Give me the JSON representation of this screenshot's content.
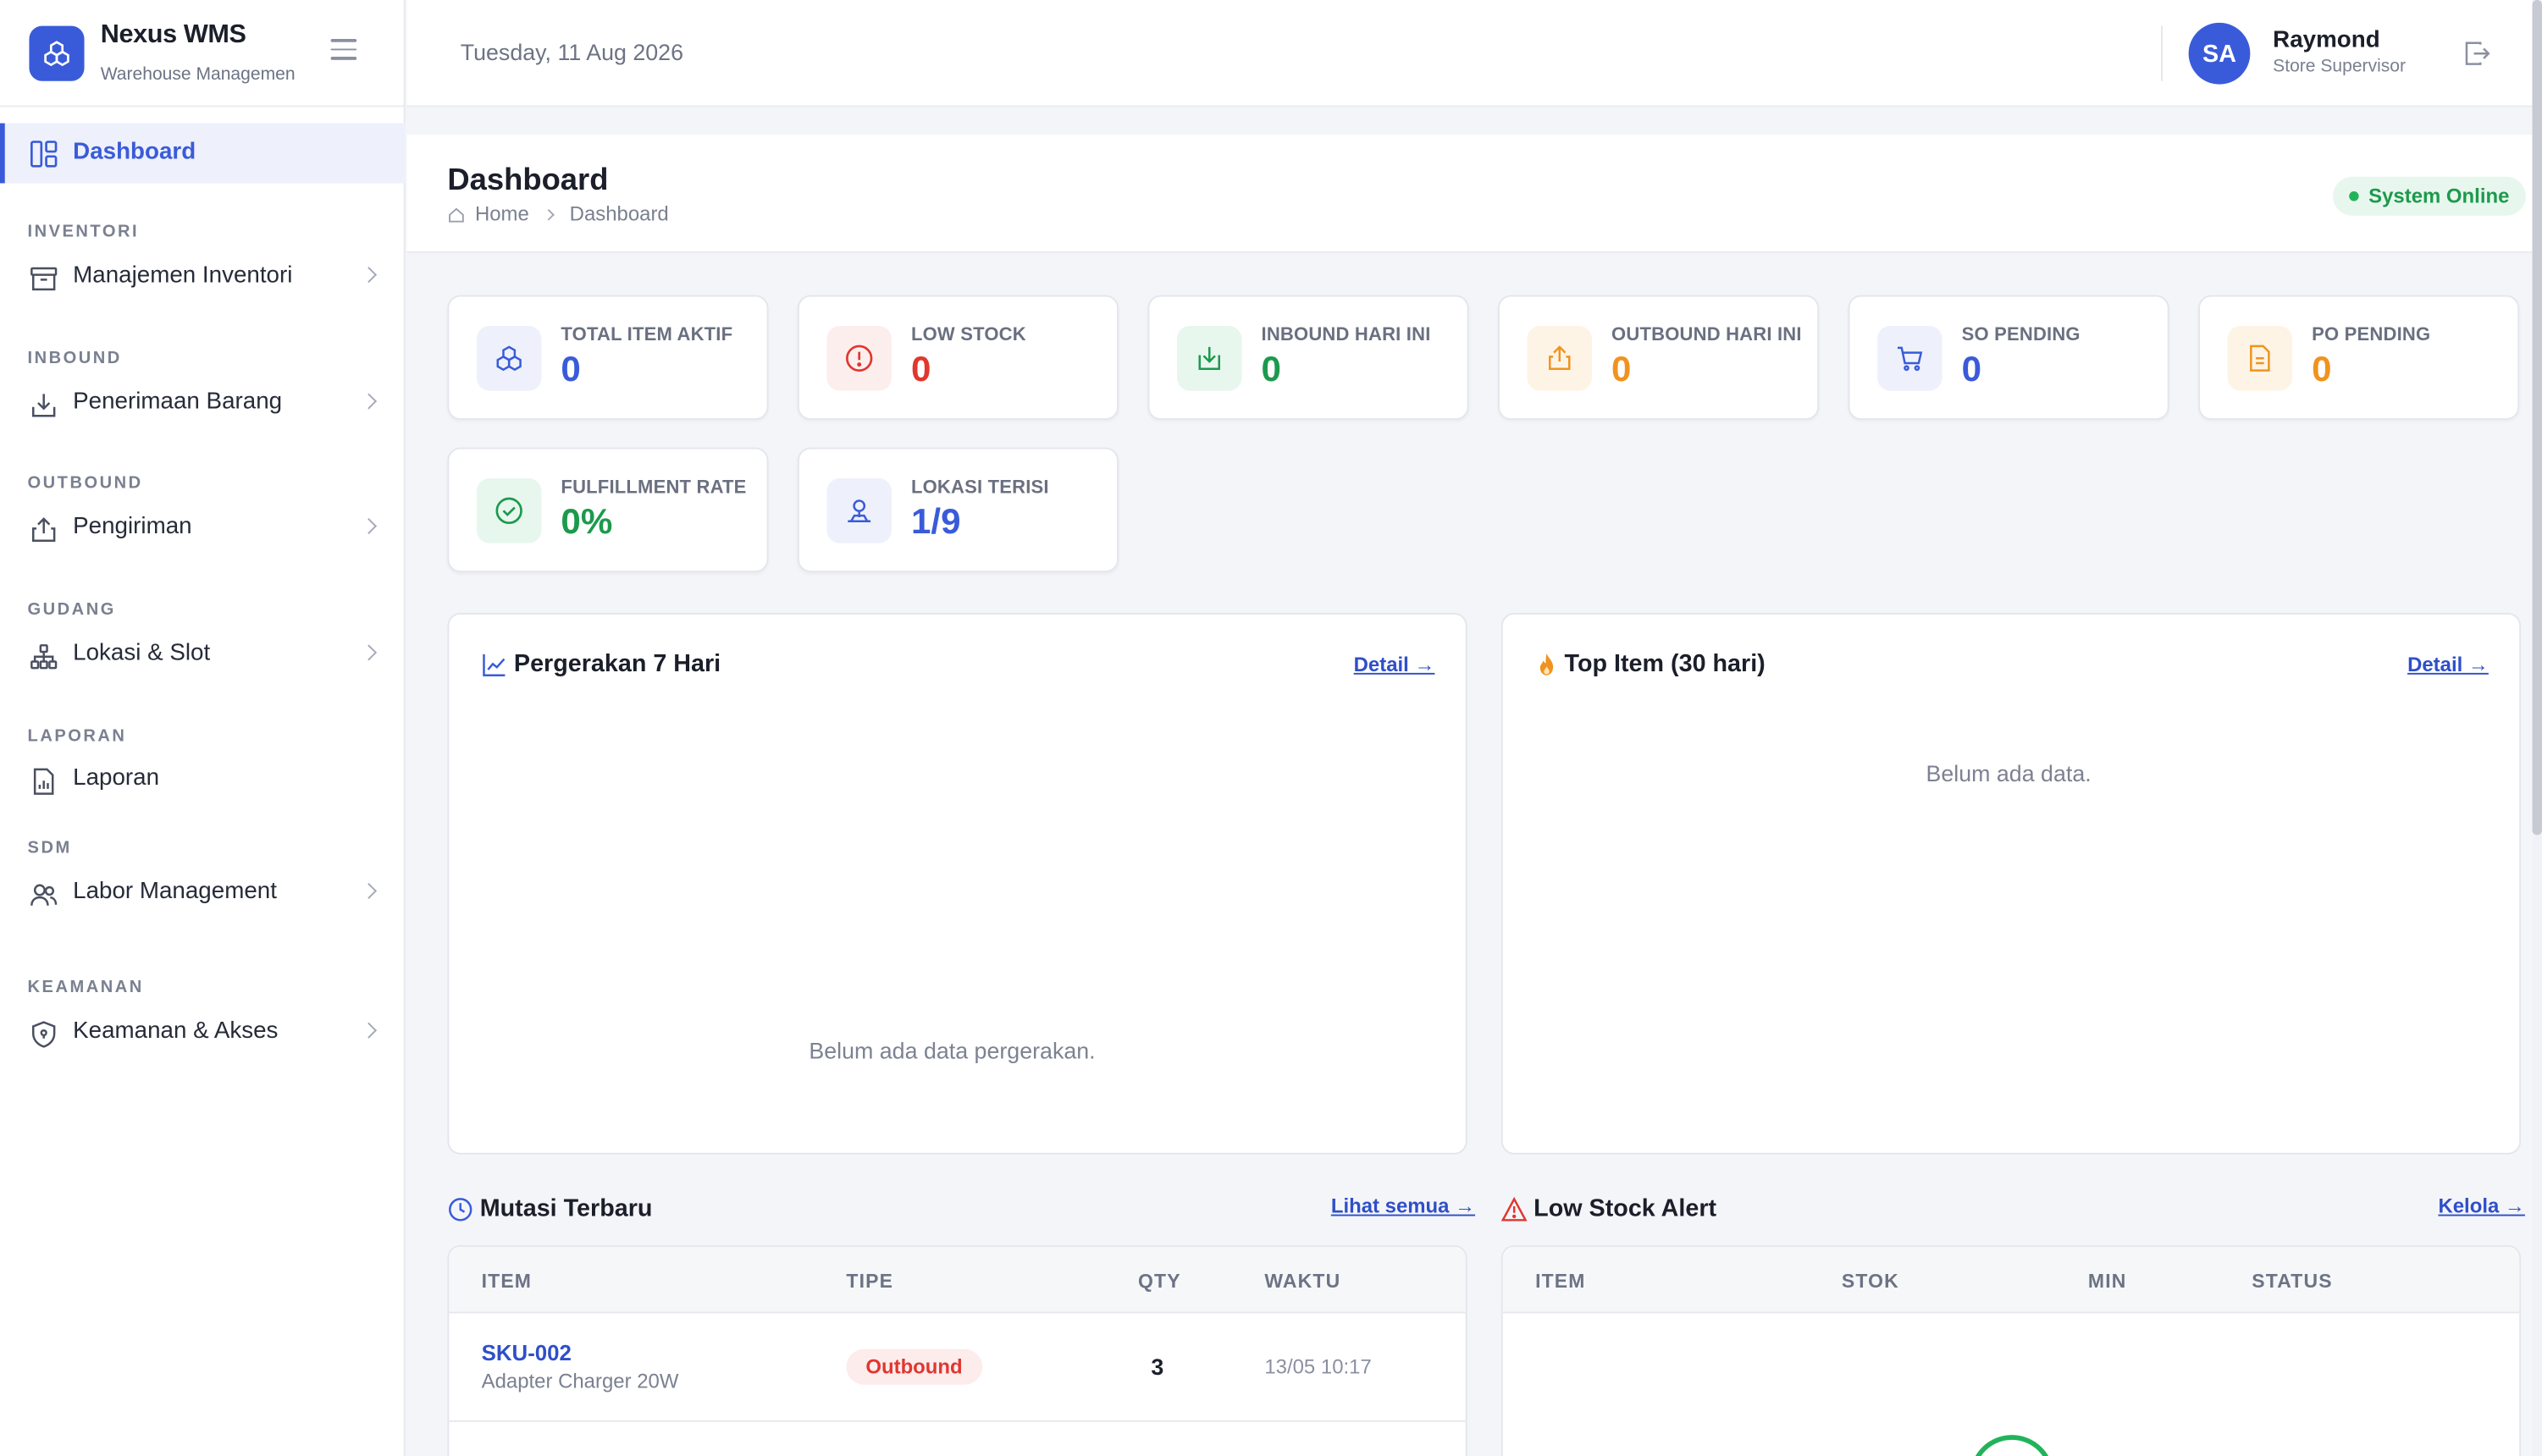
{
  "brand": {
    "title": "Nexus WMS",
    "subtitle": "Warehouse Managemen"
  },
  "topbar": {
    "date": "Tuesday, 11 Aug 2026",
    "avatar_initials": "SA",
    "user_name": "Raymond",
    "user_role": "Store Supervisor"
  },
  "sidebar": {
    "active": {
      "label": "Dashboard",
      "icon": "dashboard-icon"
    },
    "sections": [
      {
        "title": "INVENTORI",
        "item": "Manajemen Inventori",
        "icon": "inventory-icon"
      },
      {
        "title": "INBOUND",
        "item": "Penerimaan Barang",
        "icon": "inbound-icon"
      },
      {
        "title": "OUTBOUND",
        "item": "Pengiriman",
        "icon": "outbound-icon"
      },
      {
        "title": "GUDANG",
        "item": "Lokasi & Slot",
        "icon": "location-icon"
      },
      {
        "title": "LAPORAN",
        "item": "Laporan",
        "icon": "report-icon"
      },
      {
        "title": "SDM",
        "item": "Labor Management",
        "icon": "users-icon"
      },
      {
        "title": "KEAMANAN",
        "item": "Keamanan & Akses",
        "icon": "shield-icon"
      }
    ]
  },
  "page": {
    "title": "Dashboard",
    "breadcrumb_home": "Home",
    "breadcrumb_current": "Dashboard",
    "status": "System Online"
  },
  "kpis": [
    {
      "label": "TOTAL ITEM AKTIF",
      "value": "0",
      "color": "#3a5bd9"
    },
    {
      "label": "LOW STOCK",
      "value": "0",
      "color": "#e0372f"
    },
    {
      "label": "INBOUND HARI INI",
      "value": "0",
      "color": "#1c9a4c"
    },
    {
      "label": "OUTBOUND HARI INI",
      "value": "0",
      "color": "#f0931e"
    },
    {
      "label": "SO PENDING",
      "value": "0",
      "color": "#3a5bd9"
    },
    {
      "label": "PO PENDING",
      "value": "0",
      "color": "#f0931e"
    },
    {
      "label": "FULFILLMENT RATE",
      "value": "0%",
      "color": "#1c9a4c"
    },
    {
      "label": "LOKASI TERISI",
      "value": "1/9",
      "color": "#3a5bd9"
    }
  ],
  "movement": {
    "title": "Pergerakan 7 Hari",
    "link": "Detail →",
    "empty": "Belum ada data pergerakan."
  },
  "top_item": {
    "title": "Top Item (30 hari)",
    "link": "Detail →",
    "empty": "Belum ada data."
  },
  "mutasi": {
    "title": "Mutasi Terbaru",
    "link": "Lihat semua →",
    "headers": [
      "ITEM",
      "TIPE",
      "QTY",
      "WAKTU"
    ],
    "rows": [
      {
        "sku": "SKU-002",
        "name": "Adapter Charger 20W",
        "type": "Outbound",
        "qty": "3",
        "time": "13/05 10:17"
      }
    ]
  },
  "low_stock": {
    "title": "Low Stock Alert",
    "link": "Kelola →",
    "headers": [
      "ITEM",
      "STOK",
      "MIN",
      "STATUS"
    ]
  }
}
